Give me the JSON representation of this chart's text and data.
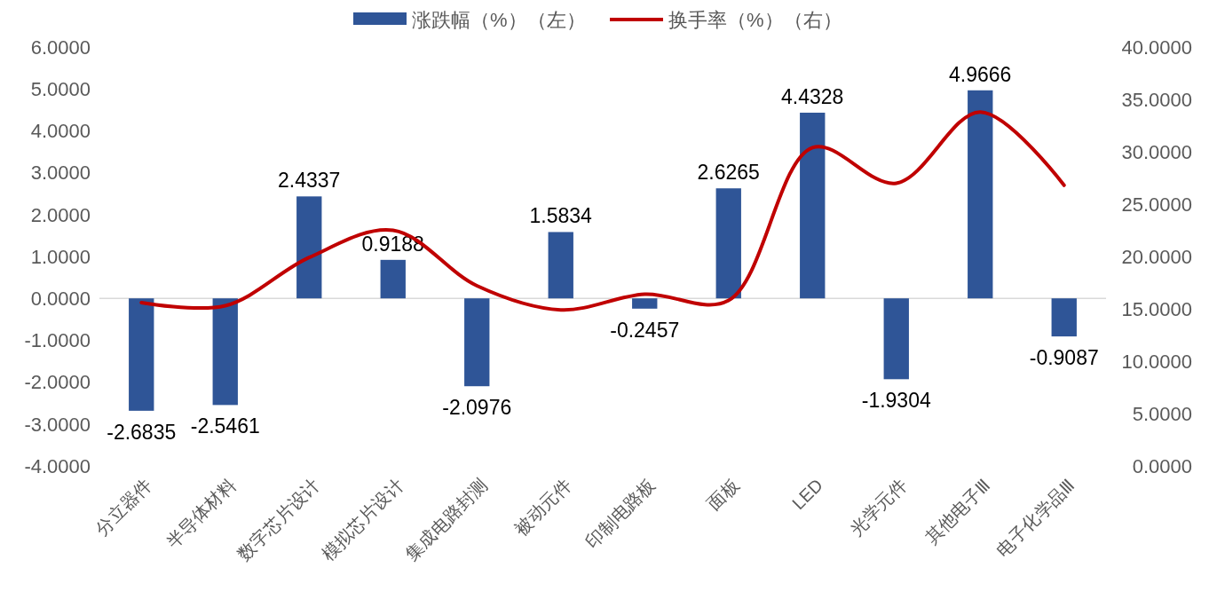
{
  "chart_data": {
    "type": "bar",
    "categories": [
      "分立器件",
      "半导体材料",
      "数字芯片设计",
      "模拟芯片设计",
      "集成电路封测",
      "被动元件",
      "印制电路板",
      "面板",
      "LED",
      "光学元件",
      "其他电子Ⅲ",
      "电子化学品Ⅲ"
    ],
    "series": [
      {
        "name": "涨跌幅（%）（左）",
        "color": "#2f5597",
        "values": [
          -2.6835,
          -2.5461,
          2.4337,
          0.9188,
          -2.0976,
          1.5834,
          -0.2457,
          2.6265,
          4.4328,
          -1.9304,
          4.9666,
          -0.9087
        ],
        "value_labels": [
          "-2.6835",
          "-2.5461",
          "2.4337",
          "0.9188",
          "-2.0976",
          "1.5834",
          "-0.2457",
          "2.6265",
          "4.4328",
          "-1.9304",
          "4.9666",
          "-0.9087"
        ]
      },
      {
        "name": "换手率（%）（右）",
        "type": "line",
        "axis": "y2",
        "color": "#c00000",
        "values": [
          15.6,
          15.3,
          19.9,
          22.5,
          17.2,
          14.9,
          16.4,
          15.8,
          30.4,
          27.0,
          33.8,
          26.8
        ]
      }
    ],
    "ylim": [
      -4,
      6
    ],
    "yticks": [
      {
        "value": -4,
        "label": "-4.0000"
      },
      {
        "value": -3,
        "label": "-3.0000"
      },
      {
        "value": -2,
        "label": "-2.0000"
      },
      {
        "value": -1,
        "label": "-1.0000"
      },
      {
        "value": 0,
        "label": "0.0000"
      },
      {
        "value": 1,
        "label": "1.0000"
      },
      {
        "value": 2,
        "label": "2.0000"
      },
      {
        "value": 3,
        "label": "3.0000"
      },
      {
        "value": 4,
        "label": "4.0000"
      },
      {
        "value": 5,
        "label": "5.0000"
      },
      {
        "value": 6,
        "label": "6.0000"
      }
    ],
    "y2lim": [
      0,
      40
    ],
    "y2ticks": [
      {
        "value": 0,
        "label": "0.0000"
      },
      {
        "value": 5,
        "label": "5.0000"
      },
      {
        "value": 10,
        "label": "10.0000"
      },
      {
        "value": 15,
        "label": "15.0000"
      },
      {
        "value": 20,
        "label": "20.0000"
      },
      {
        "value": 25,
        "label": "25.0000"
      },
      {
        "value": 30,
        "label": "30.0000"
      },
      {
        "value": 35,
        "label": "35.0000"
      },
      {
        "value": 40,
        "label": "40.0000"
      }
    ],
    "legend": "top"
  }
}
